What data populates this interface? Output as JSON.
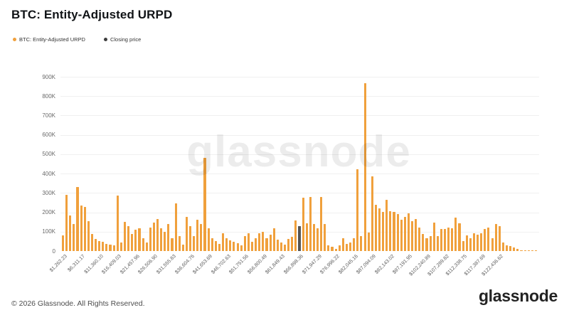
{
  "header": {
    "title": "BTC: Entity-Adjusted URPD"
  },
  "legend": [
    {
      "label": "BTC: Entity-Adjusted URPD",
      "color": "#F0A03C"
    },
    {
      "label": "Closing price",
      "color": "#3d3d3d"
    }
  ],
  "watermark": "glassnode",
  "footer": {
    "copyright": "© 2026 Glassnode. All Rights Reserved.",
    "logo_text": "glassnode"
  },
  "chart_data": {
    "type": "bar",
    "title": "BTC: Entity-Adjusted URPD",
    "xlabel": "",
    "ylabel": "",
    "ylim": [
      0,
      900000
    ],
    "grid": "horizontal",
    "legend_position": "top-left",
    "y_tick_labels": [
      "0",
      "100K",
      "200K",
      "300K",
      "400K",
      "500K",
      "600K",
      "700K",
      "800K",
      "900K"
    ],
    "x_tick_labels": [
      "$1,262.23",
      "$6,311.17",
      "$11,360.10",
      "$16,409.03",
      "$21,457.96",
      "$26,506.90",
      "$31,555.83",
      "$36,604.76",
      "$41,653.69",
      "$46,702.63",
      "$51,751.56",
      "$56,800.49",
      "$61,849.43",
      "$66,898.36",
      "$71,947.29",
      "$76,996.22",
      "$82,045.16",
      "$87,094.09",
      "$92,143.02",
      "$97,191.95",
      "$102,240.89",
      "$107,289.82",
      "$112,338.75",
      "$117,387.69",
      "$122,436.62"
    ],
    "x_ticks_every_n_bars": 5,
    "price_bucket_start_usd": 1262.23,
    "price_bucket_step_usd": 1009.79,
    "values_unit": "thousands",
    "values": [
      80,
      290,
      185,
      140,
      330,
      235,
      228,
      156,
      88,
      62,
      51,
      48,
      38,
      34,
      30,
      285,
      43,
      150,
      128,
      90,
      112,
      116,
      67,
      45,
      122,
      146,
      167,
      116,
      101,
      140,
      67,
      245,
      79,
      33,
      177,
      128,
      79,
      162,
      140,
      480,
      116,
      67,
      52,
      37,
      91,
      67,
      55,
      49,
      40,
      30,
      79,
      91,
      49,
      67,
      91,
      101,
      67,
      85,
      116,
      58,
      44,
      33,
      62,
      74,
      158,
      130,
      275,
      143,
      280,
      140,
      116,
      280,
      140,
      30,
      21,
      12,
      30,
      67,
      37,
      45,
      67,
      423,
      79,
      868,
      94,
      385,
      238,
      220,
      201,
      265,
      207,
      201,
      192,
      162,
      177,
      195,
      155,
      167,
      122,
      88,
      67,
      79,
      146,
      79,
      113,
      113,
      122,
      116,
      174,
      143,
      52,
      82,
      67,
      91,
      85,
      91,
      113,
      122,
      67,
      138,
      130,
      43,
      30,
      24,
      18,
      12,
      4,
      3,
      2,
      2,
      1
    ],
    "closing_price_index": 65,
    "bar_color": "#F0A03C",
    "closing_bar_color": "#555555"
  }
}
